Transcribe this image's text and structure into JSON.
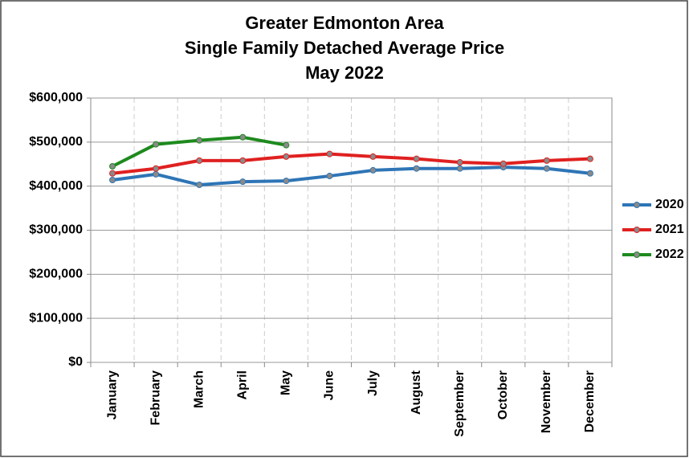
{
  "chart_data": {
    "type": "line",
    "title": [
      "Greater Edmonton Area",
      "Single Family Detached Average Price",
      "May 2022"
    ],
    "categories": [
      "January",
      "February",
      "March",
      "April",
      "May",
      "June",
      "July",
      "August",
      "September",
      "October",
      "November",
      "December"
    ],
    "series": [
      {
        "name": "2020",
        "color": "#2e75b6",
        "values": [
          414000,
          427000,
          403000,
          410000,
          412000,
          423000,
          436000,
          440000,
          440000,
          443000,
          440000,
          429000
        ]
      },
      {
        "name": "2021",
        "color": "#e02020",
        "values": [
          429000,
          440000,
          458000,
          458000,
          467000,
          473000,
          467000,
          462000,
          454000,
          451000,
          458000,
          462000
        ]
      },
      {
        "name": "2022",
        "color": "#1e8a1e",
        "values": [
          445000,
          495000,
          504000,
          511000,
          493000,
          null,
          null,
          null,
          null,
          null,
          null,
          null
        ]
      }
    ],
    "ylim": [
      0,
      600000
    ],
    "yticks": [
      {
        "value": 0,
        "label": "$0"
      },
      {
        "value": 100000,
        "label": "$100,000"
      },
      {
        "value": 200000,
        "label": "$200,000"
      },
      {
        "value": 300000,
        "label": "$300,000"
      },
      {
        "value": 400000,
        "label": "$400,000"
      },
      {
        "value": 500000,
        "label": "$500,000"
      },
      {
        "value": 600000,
        "label": "$600,000"
      }
    ],
    "grid": true,
    "legend": "right"
  }
}
